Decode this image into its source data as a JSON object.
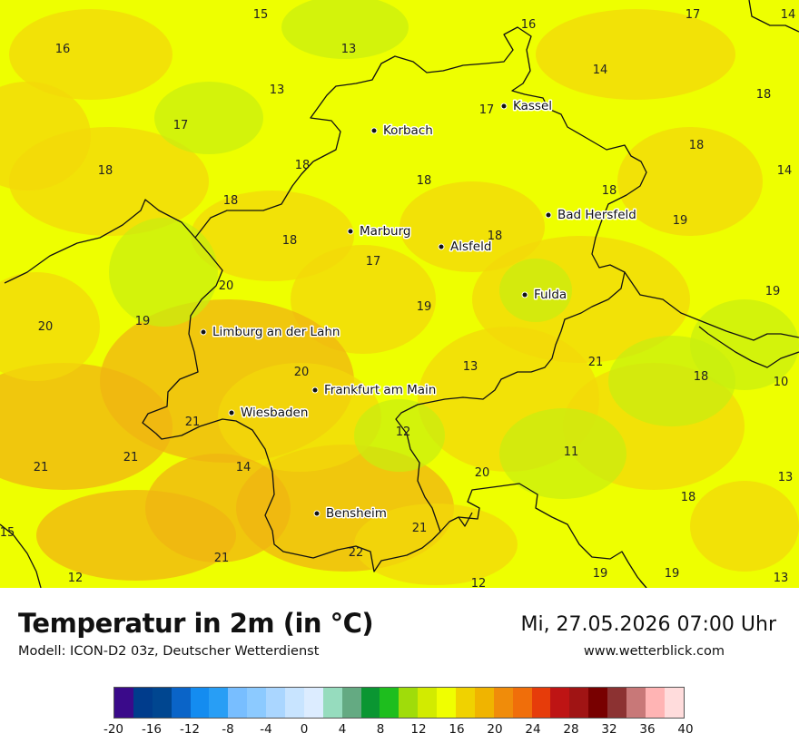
{
  "title": "Temperatur in 2m (in °C)",
  "model": "Modell: ICON-D2 03z, Deutscher Wetterdienst",
  "datetime": "Mi, 27.05.2026 07:00 Uhr",
  "website": "www.wetterblick.com",
  "colors": {
    "field_base": "#eeff00",
    "field_warm": "#f3d80a",
    "field_warmer": "#f0b411",
    "field_cool": "#c8ee10",
    "border": "#111111"
  },
  "cities": [
    {
      "name": "Kassel"
    },
    {
      "name": "Korbach"
    },
    {
      "name": "Bad Hersfeld"
    },
    {
      "name": "Marburg"
    },
    {
      "name": "Alsfeld"
    },
    {
      "name": "Fulda"
    },
    {
      "name": "Limburg an der Lahn"
    },
    {
      "name": "Frankfurt am Main"
    },
    {
      "name": "Wiesbaden"
    },
    {
      "name": "Bensheim"
    }
  ],
  "values": [
    "15",
    "16",
    "17",
    "14",
    "16",
    "13",
    "14",
    "13",
    "18",
    "17",
    "17",
    "18",
    "18",
    "18",
    "14",
    "18",
    "18",
    "18",
    "19",
    "18",
    "18",
    "17",
    "20",
    "19",
    "19",
    "20",
    "19",
    "13",
    "21",
    "18",
    "10",
    "20",
    "21",
    "12",
    "11",
    "21",
    "21",
    "14",
    "20",
    "13",
    "18",
    "15",
    "21",
    "22",
    "21",
    "12",
    "12",
    "19",
    "19",
    "13"
  ],
  "legend": {
    "colors": [
      "#3a0a8a",
      "#003c8c",
      "#004690",
      "#0a64c8",
      "#148cf0",
      "#289ef5",
      "#78beff",
      "#8ccaff",
      "#aad6ff",
      "#c8e4ff",
      "#dcecff",
      "#96dcbe",
      "#64aa82",
      "#0a9632",
      "#1ebe1e",
      "#a0dc0a",
      "#d2eb00",
      "#f0ff00",
      "#f0d200",
      "#f0b400",
      "#f08c0a",
      "#f06e0a",
      "#e63c0a",
      "#be1414",
      "#a01414",
      "#780000",
      "#8c3232",
      "#c87878",
      "#ffb4b4",
      "#ffdcdc"
    ],
    "ticks": [
      "-20",
      "-16",
      "-12",
      "-8",
      "-4",
      "0",
      "4",
      "8",
      "12",
      "16",
      "20",
      "24",
      "28",
      "32",
      "36",
      "40"
    ]
  }
}
